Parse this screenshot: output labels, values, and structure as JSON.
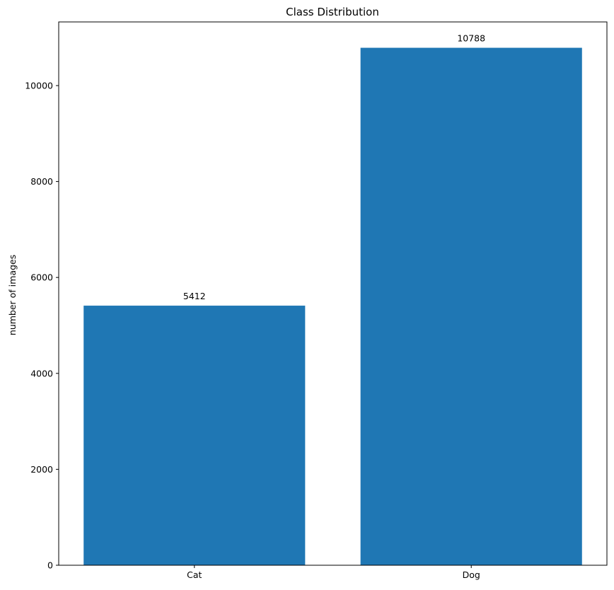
{
  "chart_data": {
    "type": "bar",
    "title": "Class Distribution",
    "xlabel": "",
    "ylabel": "number of images",
    "categories": [
      "Cat",
      "Dog"
    ],
    "values": [
      5412,
      10788
    ],
    "data_labels": [
      "5412",
      "10788"
    ],
    "ylim": [
      0,
      11327
    ],
    "yticks": [
      0,
      2000,
      4000,
      6000,
      8000,
      10000
    ],
    "ytick_labels": [
      "0",
      "2000",
      "4000",
      "6000",
      "8000",
      "10000"
    ],
    "grid": false,
    "legend": "none",
    "bar_color": "#1f77b4"
  }
}
